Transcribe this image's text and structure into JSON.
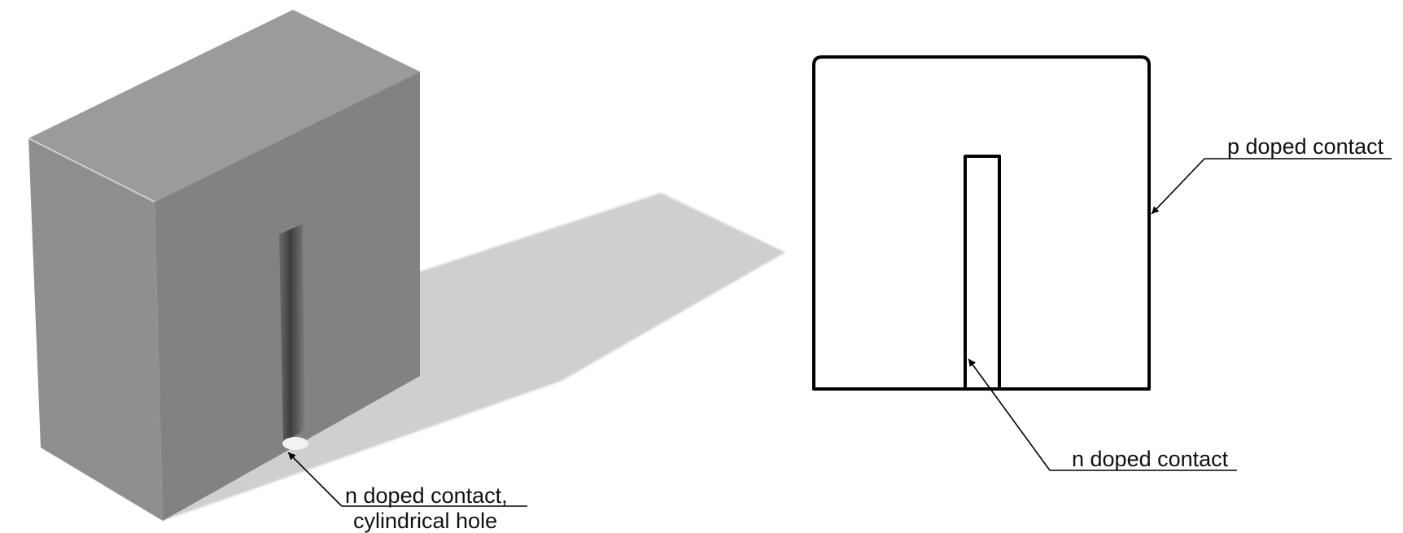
{
  "labels": {
    "iso_label_line1": "n doped contact,",
    "iso_label_line2": "cylindrical hole",
    "p_contact": "p doped contact",
    "n_contact": "n doped contact"
  },
  "colors": {
    "top_face": "#9b9b9b",
    "front_face": "#8f8f8f",
    "right_face": "#828282",
    "shadow": "#cfcfcf",
    "outline": "#000000"
  }
}
